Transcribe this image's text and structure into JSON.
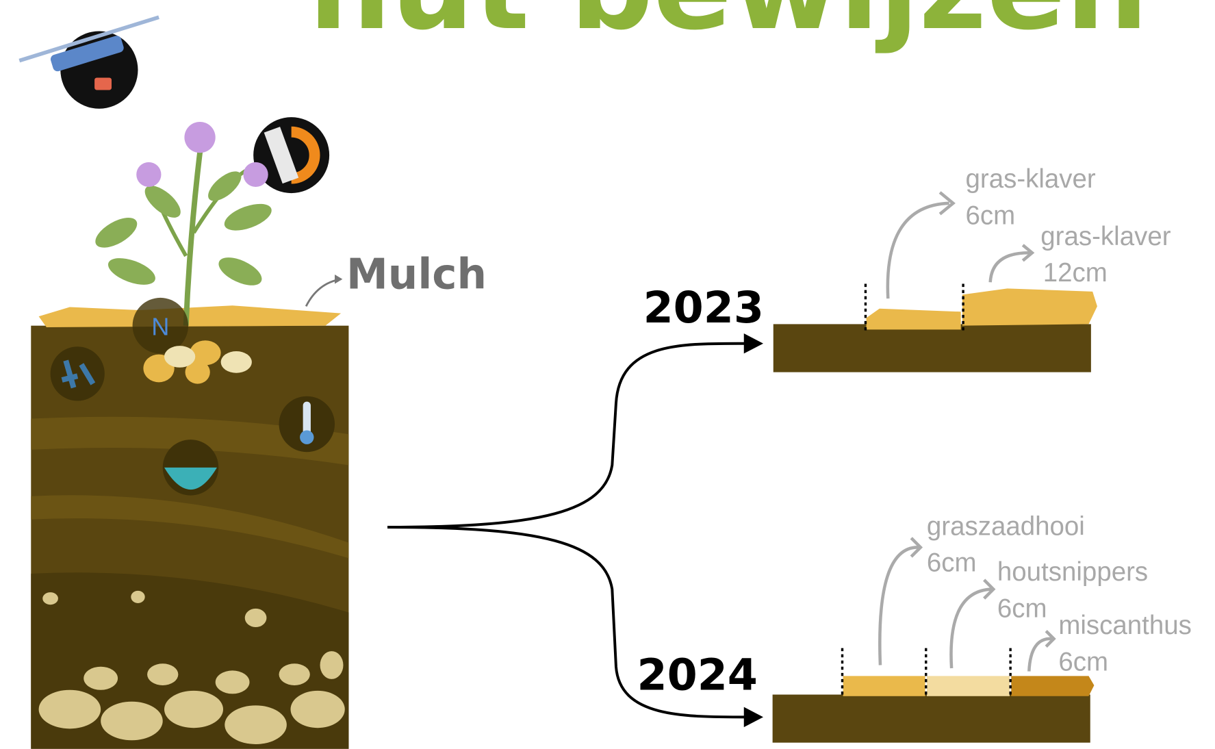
{
  "title": "nut bewijzen",
  "mulch_label": "Mulch",
  "nutrient_icon": "N",
  "branches": [
    {
      "year": "2023",
      "treatments": [
        {
          "name": "gras-klaver",
          "depth": "6cm"
        },
        {
          "name": "gras-klaver",
          "depth": "12cm"
        }
      ]
    },
    {
      "year": "2024",
      "treatments": [
        {
          "name": "graszaadhooi",
          "depth": "6cm"
        },
        {
          "name": "houtsnippers",
          "depth": "6cm"
        },
        {
          "name": "miscanthus",
          "depth": "6cm"
        }
      ]
    }
  ]
}
